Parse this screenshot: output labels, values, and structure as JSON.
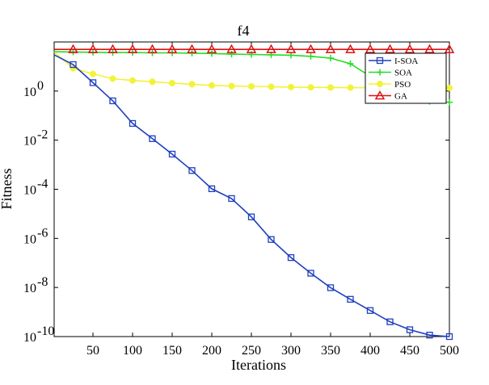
{
  "chart_data": {
    "type": "line",
    "title": "f4",
    "xlabel": "Iterations",
    "ylabel": "Fitness",
    "xlim": [
      1,
      500
    ],
    "ylim": [
      1e-10,
      100
    ],
    "yscale": "log",
    "xticks": [
      50,
      100,
      150,
      200,
      250,
      300,
      350,
      400,
      450,
      500
    ],
    "yticks": [
      {
        "value": 1,
        "base": "10",
        "exp": "0"
      },
      {
        "value": 0.01,
        "base": "10",
        "exp": "-2"
      },
      {
        "value": 0.0001,
        "base": "10",
        "exp": "-4"
      },
      {
        "value": 1e-06,
        "base": "10",
        "exp": "-6"
      },
      {
        "value": 1e-08,
        "base": "10",
        "exp": "-8"
      },
      {
        "value": 1e-10,
        "base": "10",
        "exp": "-10"
      }
    ],
    "grid": false,
    "legend_position": "top-right",
    "series": [
      {
        "name": "I-SOA",
        "color": "#1f3fbf",
        "marker": "square",
        "x": [
          1,
          25,
          50,
          75,
          100,
          125,
          150,
          175,
          200,
          225,
          250,
          275,
          300,
          325,
          350,
          375,
          400,
          425,
          450,
          475,
          500
        ],
        "y": [
          30,
          12,
          2.2,
          0.4,
          0.048,
          0.0115,
          0.0027,
          0.00058,
          0.000105,
          4.2e-05,
          7.5e-06,
          9e-07,
          1.65e-07,
          3.8e-08,
          9.8e-09,
          3.3e-09,
          1.15e-09,
          4e-10,
          1.9e-10,
          1.15e-10,
          1e-10
        ]
      },
      {
        "name": "SOA",
        "color": "#22dd22",
        "marker": "plus",
        "x": [
          1,
          25,
          50,
          75,
          100,
          125,
          150,
          175,
          200,
          225,
          250,
          275,
          300,
          325,
          350,
          375,
          400,
          425,
          450,
          475,
          500
        ],
        "y": [
          40,
          39,
          38,
          37,
          37,
          36,
          36,
          35,
          34,
          32,
          31,
          30,
          29,
          26,
          22,
          13,
          4,
          1.1,
          0.6,
          0.38,
          0.35
        ]
      },
      {
        "name": "PSO",
        "color": "#f2f23a",
        "marker": "circle",
        "x": [
          1,
          25,
          50,
          75,
          100,
          125,
          150,
          175,
          200,
          225,
          250,
          275,
          300,
          325,
          350,
          375,
          400,
          425,
          450,
          475,
          500
        ],
        "y": [
          40,
          8.5,
          5,
          3.2,
          2.7,
          2.4,
          2.1,
          1.9,
          1.7,
          1.6,
          1.55,
          1.5,
          1.45,
          1.42,
          1.4,
          1.38,
          1.37,
          1.36,
          1.35,
          1.35,
          1.35
        ]
      },
      {
        "name": "GA",
        "color": "#dd1111",
        "marker": "triangle",
        "x": [
          1,
          25,
          50,
          75,
          100,
          125,
          150,
          175,
          200,
          225,
          250,
          275,
          300,
          325,
          350,
          375,
          400,
          425,
          450,
          475,
          500
        ],
        "y": [
          50,
          50,
          50,
          50,
          50,
          50,
          50,
          50,
          50,
          50,
          50,
          50,
          50,
          50,
          50,
          50,
          50,
          50,
          50,
          50,
          50
        ]
      }
    ]
  }
}
